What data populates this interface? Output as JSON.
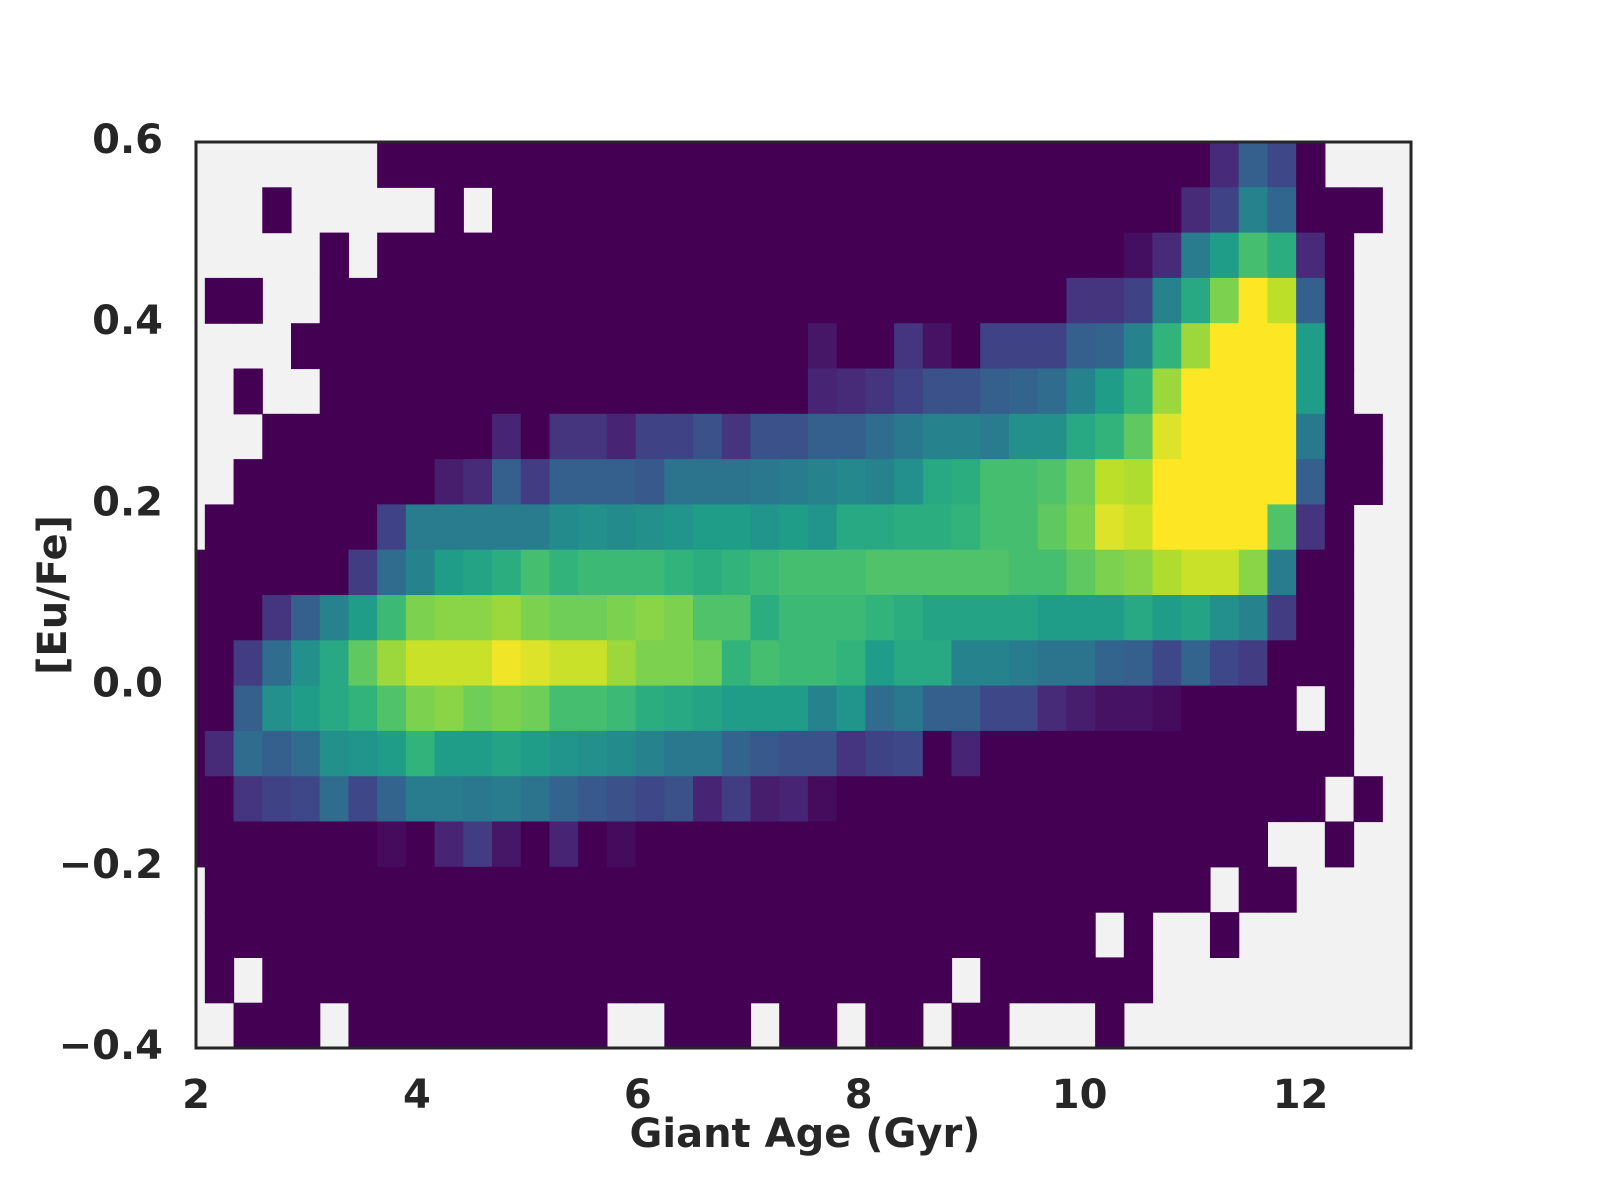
{
  "chart_data": {
    "type": "heatmap",
    "xlabel": "Giant Age (Gyr)",
    "ylabel": "[Eu/Fe]",
    "xlim": [
      2,
      13
    ],
    "ylim": [
      -0.4,
      0.6
    ],
    "xticks": [
      2,
      4,
      6,
      8,
      10,
      12
    ],
    "yticks": [
      {
        "value": -0.4,
        "label": "−0.4"
      },
      {
        "value": -0.2,
        "label": "−0.2"
      },
      {
        "value": 0,
        "label": "0.0"
      },
      0.2,
      0.4,
      0.6
    ],
    "cmap": "viridis",
    "background": "#f2f2f2",
    "x_edges": [
      1.82,
      2.08,
      2.34,
      2.6,
      2.86,
      3.12,
      3.38,
      3.64,
      3.9,
      4.16,
      4.42,
      4.68,
      4.94,
      5.2,
      5.46,
      5.72,
      5.98,
      6.24,
      6.5,
      6.76,
      7.02,
      7.28,
      7.54,
      7.8,
      8.06,
      8.32,
      8.58,
      8.84,
      9.1,
      9.36,
      9.62,
      9.88,
      10.14,
      10.4,
      10.66,
      10.92,
      11.18,
      11.44,
      11.7,
      11.96,
      12.22,
      12.48,
      12.74
    ],
    "y_edges": [
      0.6,
      0.55,
      0.5,
      0.45,
      0.4,
      0.35,
      0.3,
      0.25,
      0.2,
      0.15,
      0.1,
      0.05,
      0,
      -0.05,
      -0.1,
      -0.15,
      -0.2,
      -0.25,
      -0.3,
      -0.35,
      -0.4
    ],
    "z": [
      [
        null,
        null,
        null,
        null,
        null,
        null,
        null,
        0,
        0,
        0,
        0,
        0,
        0,
        0,
        0,
        0,
        0,
        0,
        0,
        0,
        0,
        0,
        0,
        0,
        0,
        0,
        0,
        0,
        0,
        0,
        0,
        0,
        0,
        0,
        0,
        0,
        0.12,
        0.3,
        0.22,
        0,
        null,
        null
      ],
      [
        null,
        null,
        null,
        0,
        null,
        null,
        null,
        null,
        null,
        0,
        null,
        0,
        0,
        0,
        0,
        0,
        0,
        0,
        0,
        0,
        0,
        0,
        0,
        0,
        0,
        0,
        0,
        0,
        0,
        0,
        0,
        0,
        0,
        0,
        0,
        0.12,
        0.2,
        0.45,
        0.33,
        0,
        0,
        0
      ],
      [
        null,
        null,
        null,
        null,
        null,
        0,
        null,
        0,
        0,
        0,
        0,
        0,
        0,
        0,
        0,
        0,
        0,
        0,
        0,
        0,
        0,
        0,
        0,
        0,
        0,
        0,
        0,
        0,
        0,
        0,
        0,
        0,
        0,
        0.04,
        0.12,
        0.42,
        0.55,
        0.7,
        0.62,
        0.12,
        0,
        null
      ],
      [
        null,
        0,
        0,
        null,
        null,
        0,
        0,
        0,
        0,
        0,
        0,
        0,
        0,
        0,
        0,
        0,
        0,
        0,
        0,
        0,
        0,
        0,
        0,
        0,
        0,
        0,
        0,
        0,
        0,
        0,
        0,
        0.15,
        0.15,
        0.2,
        0.45,
        0.6,
        0.8,
        1,
        0.9,
        0.3,
        0,
        null
      ],
      [
        null,
        null,
        null,
        null,
        0,
        0,
        0,
        0,
        0,
        0,
        0,
        0,
        0,
        0,
        0,
        0,
        0,
        0,
        0,
        0,
        0,
        0,
        0.06,
        0,
        0,
        0.15,
        0.05,
        0,
        0.2,
        0.2,
        0.2,
        0.3,
        0.32,
        0.45,
        0.65,
        0.85,
        1,
        1,
        1,
        0.55,
        0,
        null
      ],
      [
        null,
        null,
        0,
        null,
        null,
        0,
        0,
        0,
        0,
        0,
        0,
        0,
        0,
        0,
        0,
        0,
        0,
        0,
        0,
        0,
        0,
        0,
        0.1,
        0.12,
        0.15,
        0.2,
        0.25,
        0.25,
        0.3,
        0.32,
        0.35,
        0.45,
        0.55,
        0.65,
        0.85,
        1,
        1,
        1,
        1,
        0.55,
        0,
        null
      ],
      [
        null,
        null,
        null,
        0,
        0,
        0,
        0,
        0,
        0,
        0,
        0,
        0.1,
        0,
        0.15,
        0.15,
        0.1,
        0.2,
        0.2,
        0.25,
        0.15,
        0.25,
        0.25,
        0.3,
        0.3,
        0.35,
        0.4,
        0.45,
        0.45,
        0.42,
        0.5,
        0.5,
        0.6,
        0.65,
        0.75,
        0.95,
        1,
        1,
        1,
        1,
        0.4,
        0,
        0
      ],
      [
        null,
        null,
        0,
        0,
        0,
        0,
        0,
        0,
        0,
        0.08,
        0.12,
        0.3,
        0.18,
        0.3,
        0.3,
        0.3,
        0.28,
        0.38,
        0.38,
        0.38,
        0.4,
        0.42,
        0.45,
        0.47,
        0.45,
        0.5,
        0.6,
        0.62,
        0.7,
        0.7,
        0.72,
        0.78,
        0.9,
        0.88,
        1,
        1,
        1,
        1,
        1,
        0.3,
        0,
        0
      ],
      [
        null,
        0,
        0,
        0,
        0,
        0,
        0,
        0.2,
        0.42,
        0.42,
        0.42,
        0.42,
        0.42,
        0.48,
        0.5,
        0.48,
        0.5,
        0.52,
        0.55,
        0.55,
        0.52,
        0.55,
        0.52,
        0.6,
        0.6,
        0.62,
        0.62,
        0.65,
        0.7,
        0.7,
        0.75,
        0.8,
        0.95,
        0.92,
        1,
        1,
        1,
        1,
        0.72,
        0.15,
        0,
        null
      ],
      [
        0,
        0,
        0,
        0,
        0,
        0,
        0.18,
        0.35,
        0.45,
        0.55,
        0.58,
        0.62,
        0.7,
        0.65,
        0.68,
        0.68,
        0.68,
        0.65,
        0.62,
        0.65,
        0.68,
        0.7,
        0.7,
        0.7,
        0.72,
        0.72,
        0.72,
        0.72,
        0.72,
        0.7,
        0.7,
        0.75,
        0.8,
        0.82,
        0.88,
        0.92,
        0.92,
        0.82,
        0.42,
        0,
        0,
        null
      ],
      [
        0,
        0,
        0,
        0.15,
        0.3,
        0.45,
        0.55,
        0.68,
        0.8,
        0.82,
        0.82,
        0.85,
        0.8,
        0.78,
        0.78,
        0.8,
        0.82,
        0.8,
        0.72,
        0.72,
        0.62,
        0.68,
        0.68,
        0.68,
        0.65,
        0.62,
        0.58,
        0.58,
        0.58,
        0.58,
        0.55,
        0.55,
        0.55,
        0.6,
        0.55,
        0.58,
        0.5,
        0.45,
        0.18,
        0,
        0,
        null
      ],
      [
        0,
        0,
        0.18,
        0.35,
        0.5,
        0.6,
        0.75,
        0.85,
        0.92,
        0.92,
        0.92,
        0.98,
        0.95,
        0.92,
        0.92,
        0.85,
        0.8,
        0.8,
        0.78,
        0.65,
        0.7,
        0.68,
        0.68,
        0.65,
        0.55,
        0.6,
        0.6,
        0.45,
        0.45,
        0.42,
        0.38,
        0.38,
        0.32,
        0.3,
        0.22,
        0.32,
        0.22,
        0.18,
        0,
        0,
        0,
        null
      ],
      [
        0,
        0,
        0.3,
        0.5,
        0.55,
        0.6,
        0.65,
        0.72,
        0.8,
        0.82,
        0.78,
        0.8,
        0.78,
        0.7,
        0.7,
        0.68,
        0.62,
        0.6,
        0.58,
        0.55,
        0.55,
        0.55,
        0.45,
        0.52,
        0.35,
        0.4,
        0.3,
        0.3,
        0.22,
        0.22,
        0.12,
        0.08,
        0.05,
        0.05,
        0.03,
        0,
        0,
        0,
        0,
        null,
        0,
        null
      ],
      [
        0,
        0.12,
        0.35,
        0.3,
        0.35,
        0.5,
        0.52,
        0.55,
        0.65,
        0.55,
        0.55,
        0.58,
        0.55,
        0.52,
        0.5,
        0.48,
        0.45,
        0.4,
        0.4,
        0.32,
        0.28,
        0.25,
        0.25,
        0.15,
        0.2,
        0.22,
        0,
        0.1,
        0,
        0,
        0,
        0,
        0,
        0,
        0,
        0,
        0,
        0,
        0,
        0,
        0,
        null
      ],
      [
        0,
        0,
        0.15,
        0.2,
        0.22,
        0.35,
        0.22,
        0.32,
        0.42,
        0.42,
        0.4,
        0.42,
        0.38,
        0.32,
        0.28,
        0.25,
        0.22,
        0.25,
        0.1,
        0.18,
        0.08,
        0.1,
        0.03,
        0,
        0,
        0,
        0,
        0,
        0,
        0,
        0,
        0,
        0,
        0,
        0,
        0,
        0,
        0,
        0,
        0,
        null,
        0
      ],
      [
        0,
        0,
        0,
        0,
        0,
        0,
        0,
        0.03,
        0,
        0.1,
        0.18,
        0.06,
        0,
        0.1,
        0,
        0.03,
        0,
        0,
        0,
        0,
        0,
        0,
        0,
        0,
        0,
        0,
        0,
        0,
        0,
        0,
        0,
        0,
        0,
        0,
        0,
        0,
        0,
        0,
        null,
        null,
        0,
        null
      ],
      [
        null,
        0,
        0,
        0,
        0,
        0,
        0,
        0,
        0,
        0,
        0,
        0,
        0,
        0,
        0,
        0,
        0,
        0,
        0,
        0,
        0,
        0,
        0,
        0,
        0,
        0,
        0,
        0,
        0,
        0,
        0,
        0,
        0,
        0,
        0,
        0,
        null,
        0,
        0,
        null,
        null,
        null
      ],
      [
        null,
        0,
        0,
        0,
        0,
        0,
        0,
        0,
        0,
        0,
        0,
        0,
        0,
        0,
        0,
        0,
        0,
        0,
        0,
        0,
        0,
        0,
        0,
        0,
        0,
        0,
        0,
        0,
        0,
        0,
        0,
        0,
        null,
        0,
        null,
        null,
        0,
        null,
        null,
        null,
        null,
        null
      ],
      [
        null,
        0,
        null,
        0,
        0,
        0,
        0,
        0,
        0,
        0,
        0,
        0,
        0,
        0,
        0,
        0,
        0,
        0,
        0,
        0,
        0,
        0,
        0,
        0,
        0,
        0,
        0,
        null,
        0,
        0,
        0,
        0,
        0,
        0,
        null,
        null,
        null,
        null,
        null,
        null,
        null,
        null
      ],
      [
        null,
        null,
        0,
        0,
        0,
        null,
        0,
        0,
        0,
        0,
        0,
        0,
        0,
        0,
        0,
        null,
        null,
        0,
        0,
        0,
        null,
        0,
        0,
        null,
        0,
        0,
        null,
        0,
        0,
        null,
        null,
        null,
        0,
        null,
        null,
        null,
        null,
        null,
        null,
        null,
        null,
        null
      ]
    ]
  }
}
